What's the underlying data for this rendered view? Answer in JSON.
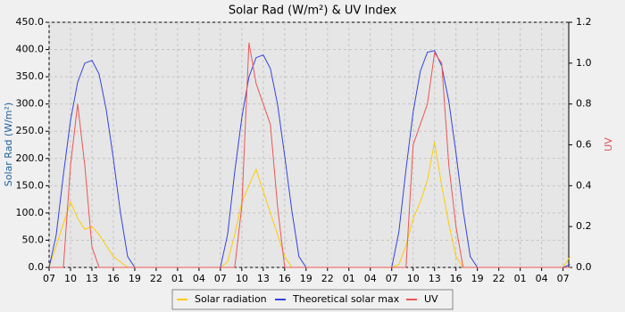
{
  "chart_data": {
    "type": "line",
    "title": "Solar Rad (W/m²) &  UV Index",
    "ylabel": "Solar Rad (W/m²)",
    "y2label": "UV",
    "x": [
      0,
      1,
      2,
      3,
      4,
      5,
      6,
      7,
      8,
      9,
      10,
      11,
      12,
      13,
      14,
      15,
      16,
      17,
      18,
      19,
      20,
      21,
      22,
      23,
      24,
      25,
      26,
      27,
      28,
      29,
      30,
      31,
      32,
      33,
      34,
      35,
      36,
      37,
      38,
      39,
      40,
      41,
      42,
      43,
      44,
      45,
      46,
      47,
      48,
      49,
      50,
      51,
      52,
      53,
      54,
      55,
      56,
      57,
      58,
      59,
      60,
      61,
      62,
      63,
      64,
      65,
      66,
      67,
      68,
      69,
      70,
      71,
      72,
      73
    ],
    "xlim": [
      0,
      72.8
    ],
    "xticks": [
      {
        "value": 0,
        "label": "07"
      },
      {
        "value": 3,
        "label": "10"
      },
      {
        "value": 6,
        "label": "13"
      },
      {
        "value": 9,
        "label": "16"
      },
      {
        "value": 12,
        "label": "19"
      },
      {
        "value": 15,
        "label": "22"
      },
      {
        "value": 18,
        "label": "01"
      },
      {
        "value": 21,
        "label": "04"
      },
      {
        "value": 24,
        "label": "07"
      },
      {
        "value": 27,
        "label": "10"
      },
      {
        "value": 30,
        "label": "13"
      },
      {
        "value": 33,
        "label": "16"
      },
      {
        "value": 36,
        "label": "19"
      },
      {
        "value": 39,
        "label": "22"
      },
      {
        "value": 42,
        "label": "01"
      },
      {
        "value": 45,
        "label": "04"
      },
      {
        "value": 48,
        "label": "07"
      },
      {
        "value": 51,
        "label": "10"
      },
      {
        "value": 54,
        "label": "13"
      },
      {
        "value": 57,
        "label": "16"
      },
      {
        "value": 60,
        "label": "19"
      },
      {
        "value": 63,
        "label": "22"
      },
      {
        "value": 66,
        "label": "01"
      },
      {
        "value": 69,
        "label": "04"
      },
      {
        "value": 72,
        "label": "07"
      }
    ],
    "ylim": [
      0,
      450
    ],
    "yticks": [
      {
        "value": 0,
        "label": "0.0"
      },
      {
        "value": 50,
        "label": "50.0"
      },
      {
        "value": 100,
        "label": "100.0"
      },
      {
        "value": 150,
        "label": "150.0"
      },
      {
        "value": 200,
        "label": "200.0"
      },
      {
        "value": 250,
        "label": "250.0"
      },
      {
        "value": 300,
        "label": "300.0"
      },
      {
        "value": 350,
        "label": "350.0"
      },
      {
        "value": 400,
        "label": "400.0"
      },
      {
        "value": 450,
        "label": "450.0"
      }
    ],
    "y2lim": [
      0,
      1.2
    ],
    "y2ticks": [
      {
        "value": 0,
        "label": "0.0"
      },
      0.2,
      0.4,
      0.6,
      0.8,
      {
        "value": 1,
        "label": "1.0"
      },
      1.2
    ],
    "grid": true,
    "legend": "bottom",
    "series": [
      {
        "name": "Solar radiation",
        "color": "#ffcc00",
        "values": [
          0,
          40,
          80,
          120,
          90,
          70,
          75,
          60,
          40,
          20,
          10,
          0,
          0,
          0,
          0,
          0,
          0,
          0,
          0,
          0,
          0,
          0,
          0,
          0,
          0,
          10,
          60,
          120,
          150,
          180,
          140,
          100,
          60,
          20,
          0,
          0,
          0,
          0,
          0,
          0,
          0,
          0,
          0,
          0,
          0,
          0,
          0,
          0,
          0,
          5,
          40,
          90,
          120,
          160,
          230,
          150,
          80,
          20,
          0,
          0,
          0,
          0,
          0,
          0,
          0,
          0,
          0,
          0,
          0,
          0,
          0,
          0,
          0,
          20
        ]
      },
      {
        "name": "Theoretical solar max",
        "color": "#3344dd",
        "values": [
          0,
          60,
          170,
          270,
          340,
          375,
          380,
          355,
          290,
          200,
          100,
          20,
          0,
          0,
          0,
          0,
          0,
          0,
          0,
          0,
          0,
          0,
          0,
          0,
          0,
          60,
          175,
          275,
          350,
          385,
          390,
          365,
          300,
          205,
          105,
          20,
          0,
          0,
          0,
          0,
          0,
          0,
          0,
          0,
          0,
          0,
          0,
          0,
          0,
          65,
          180,
          285,
          360,
          395,
          398,
          370,
          305,
          210,
          105,
          20,
          0,
          0,
          0,
          0,
          0,
          0,
          0,
          0,
          0,
          0,
          0,
          0,
          0,
          5
        ]
      },
      {
        "name": "UV",
        "color": "#ee5555",
        "axis": "y2",
        "values": [
          0,
          0,
          0,
          0.5,
          0.8,
          0.5,
          0.1,
          0,
          0,
          0,
          0,
          0,
          0,
          0,
          0,
          0,
          0,
          0,
          0,
          0,
          0,
          0,
          0,
          0,
          0,
          0,
          0,
          0.3,
          1.1,
          0.9,
          0.8,
          0.7,
          0.3,
          0,
          0,
          0,
          0,
          0,
          0,
          0,
          0,
          0,
          0,
          0,
          0,
          0,
          0,
          0,
          0,
          0,
          0,
          0.6,
          0.7,
          0.8,
          1.05,
          1.0,
          0.5,
          0.2,
          0,
          0,
          0,
          0,
          0,
          0,
          0,
          0,
          0,
          0,
          0,
          0,
          0,
          0,
          0,
          0
        ]
      }
    ]
  }
}
